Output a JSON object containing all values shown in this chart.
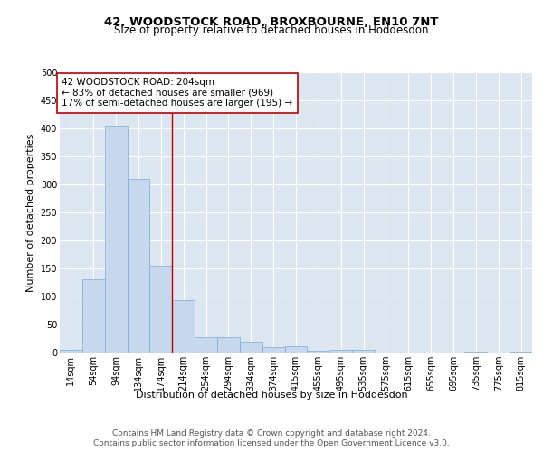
{
  "title": "42, WOODSTOCK ROAD, BROXBOURNE, EN10 7NT",
  "subtitle": "Size of property relative to detached houses in Hoddesdon",
  "xlabel": "Distribution of detached houses by size in Hoddesdon",
  "ylabel": "Number of detached properties",
  "bar_color": "#c5d8ed",
  "bar_edge_color": "#7bacd4",
  "background_color": "#dce6f1",
  "grid_color": "#ffffff",
  "categories": [
    "14sqm",
    "54sqm",
    "94sqm",
    "134sqm",
    "174sqm",
    "214sqm",
    "254sqm",
    "294sqm",
    "334sqm",
    "374sqm",
    "415sqm",
    "455sqm",
    "495sqm",
    "535sqm",
    "575sqm",
    "615sqm",
    "655sqm",
    "695sqm",
    "735sqm",
    "775sqm",
    "815sqm"
  ],
  "values": [
    5,
    130,
    405,
    310,
    155,
    93,
    27,
    28,
    19,
    10,
    11,
    4,
    5,
    5,
    0,
    0,
    0,
    0,
    2,
    0,
    1
  ],
  "ylim": [
    0,
    500
  ],
  "yticks": [
    0,
    50,
    100,
    150,
    200,
    250,
    300,
    350,
    400,
    450,
    500
  ],
  "vline_x": 4.5,
  "vline_color": "#c00000",
  "annotation_text": "42 WOODSTOCK ROAD: 204sqm\n← 83% of detached houses are smaller (969)\n17% of semi-detached houses are larger (195) →",
  "annotation_box_color": "#ffffff",
  "annotation_box_edge": "#c00000",
  "footer_line1": "Contains HM Land Registry data © Crown copyright and database right 2024.",
  "footer_line2": "Contains public sector information licensed under the Open Government Licence v3.0.",
  "title_fontsize": 9.5,
  "subtitle_fontsize": 8.5,
  "label_fontsize": 8,
  "tick_fontsize": 7,
  "annotation_fontsize": 7.5,
  "footer_fontsize": 6.5
}
